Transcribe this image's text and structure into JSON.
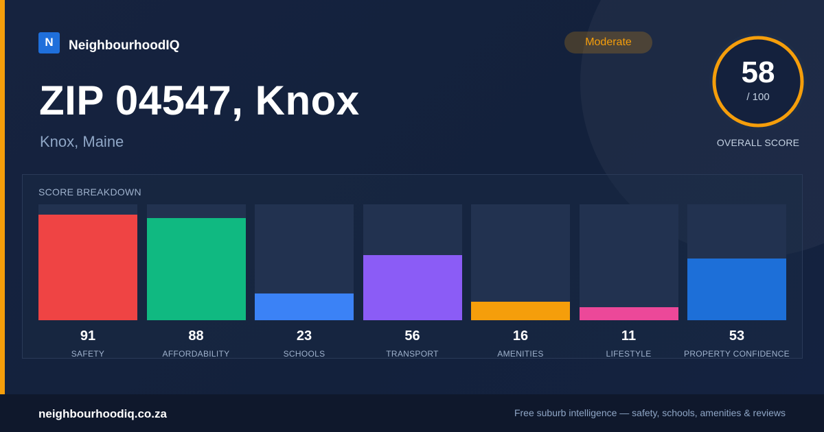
{
  "brand": {
    "logo_letter": "N",
    "name": "NeighbourhoodIQ"
  },
  "badge": {
    "label": "Moderate",
    "color": "#f59e0b"
  },
  "header": {
    "title": "ZIP 04547, Knox",
    "subtitle": "Knox, Maine"
  },
  "overall": {
    "score": "58",
    "max_label": "/ 100",
    "label": "OVERALL SCORE",
    "fraction": 0.58,
    "ring_color": "#f59e0b"
  },
  "breakdown": {
    "title": "SCORE BREAKDOWN",
    "items": [
      {
        "value": "91",
        "label": "SAFETY",
        "fraction": 0.91,
        "color": "#ef4444"
      },
      {
        "value": "88",
        "label": "AFFORDABILITY",
        "fraction": 0.88,
        "color": "#10b981"
      },
      {
        "value": "23",
        "label": "SCHOOLS",
        "fraction": 0.23,
        "color": "#3b82f6"
      },
      {
        "value": "56",
        "label": "TRANSPORT",
        "fraction": 0.56,
        "color": "#8b5cf6"
      },
      {
        "value": "16",
        "label": "AMENITIES",
        "fraction": 0.16,
        "color": "#f59e0b"
      },
      {
        "value": "11",
        "label": "LIFESTYLE",
        "fraction": 0.11,
        "color": "#ec4899"
      },
      {
        "value": "53",
        "label": "PROPERTY CONFIDENCE",
        "fraction": 0.53,
        "color": "#1d6fd8"
      }
    ]
  },
  "footer": {
    "url": "neighbourhoodiq.co.za",
    "tagline": "Free suburb intelligence — safety, schools, amenities & reviews"
  }
}
